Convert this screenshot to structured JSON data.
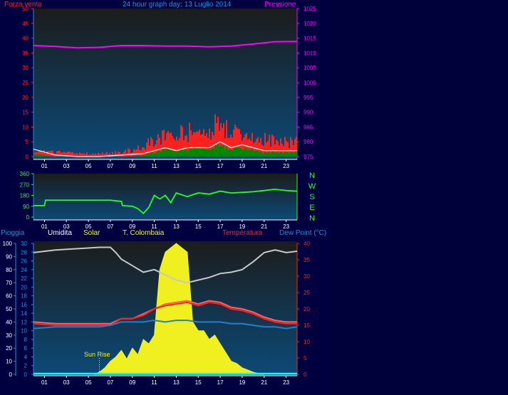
{
  "page": {
    "title": "24 hour graph day:  13 Luglio 2014"
  },
  "colors": {
    "background": "#000040",
    "plot_top": "#1c1c1c",
    "plot_bottom": "#0c4a78",
    "wind": "#ff2020",
    "gust": "#ffffff",
    "avgwind": "#008800",
    "pressure": "#ff00ff",
    "direction": "#22ff22",
    "humidity": "#c8c8c8",
    "solar": "#f0f020",
    "temperature": "#ff2020",
    "t_colombaia": "#ff6060",
    "dewpoint": "#2080d0",
    "rain": "#00ffff",
    "axis_blue": "#1e8fd8"
  },
  "chart_data": [
    {
      "type": "line",
      "title": "24 hour graph day:  13 Luglio 2014",
      "left_axis_label": "Forza vento",
      "right_axis_label": "Pressione",
      "x_ticks": [
        "01",
        "03",
        "05",
        "07",
        "09",
        "11",
        "13",
        "15",
        "17",
        "19",
        "21",
        "23"
      ],
      "y_left_ticks": [
        0,
        5,
        10,
        15,
        20,
        25,
        30,
        35,
        40,
        45,
        50
      ],
      "y_left_range": [
        0,
        50
      ],
      "y_right_ticks": [
        975,
        980,
        985,
        990,
        995,
        1000,
        1005,
        1010,
        1015,
        1020,
        1025
      ],
      "y_right_range": [
        975,
        1025
      ],
      "series": [
        {
          "key": "pressure",
          "axis": "right",
          "x": [
            0,
            2,
            4,
            6,
            8,
            10,
            12,
            14,
            16,
            18,
            20,
            22,
            24
          ],
          "values": [
            1012.5,
            1012.2,
            1011.7,
            1011.9,
            1012.5,
            1012.5,
            1012.3,
            1012.3,
            1012.1,
            1012.3,
            1013.0,
            1013.8,
            1013.9
          ]
        },
        {
          "key": "wind",
          "axis": "left",
          "x": [
            0,
            2,
            4,
            6,
            8,
            10,
            11,
            12,
            13,
            14,
            15,
            16,
            17,
            18,
            19,
            20,
            21,
            22,
            23,
            24
          ],
          "values": [
            2,
            1.5,
            1,
            1,
            1.5,
            3,
            6,
            7,
            7,
            8,
            8,
            10,
            11,
            8,
            8,
            7,
            6,
            5,
            5,
            5
          ]
        },
        {
          "key": "gust",
          "axis": "left",
          "x": [
            0,
            2,
            4,
            6,
            8,
            10,
            11,
            12,
            13,
            14,
            15,
            16,
            17,
            18,
            19,
            20,
            21,
            22,
            23,
            24
          ],
          "values": [
            2.5,
            0.5,
            0,
            0,
            0.5,
            1,
            2,
            3,
            2,
            3,
            3,
            3,
            5,
            3,
            4,
            3,
            2,
            2,
            2,
            2
          ]
        },
        {
          "key": "avgwind",
          "axis": "left",
          "x": [
            0,
            2,
            4,
            6,
            8,
            10,
            11,
            12,
            13,
            14,
            15,
            16,
            17,
            18,
            19,
            20,
            21,
            22,
            23,
            24
          ],
          "values": [
            1,
            0,
            0,
            0,
            0,
            0.5,
            1.5,
            2.5,
            2,
            2.5,
            3,
            3,
            4,
            2.5,
            3,
            2.5,
            1.5,
            1.5,
            1.5,
            1.5
          ]
        }
      ]
    },
    {
      "type": "line",
      "y_ticks": [
        0,
        90,
        180,
        270,
        360
      ],
      "y_range": [
        0,
        360
      ],
      "compass_labels": [
        "N",
        "W",
        "S",
        "E",
        "N"
      ],
      "x_ticks": [
        "01",
        "03",
        "05",
        "07",
        "09",
        "11",
        "13",
        "15",
        "17",
        "19",
        "21",
        "23"
      ],
      "series": [
        {
          "key": "direction",
          "x": [
            0,
            1,
            1.1,
            3,
            5,
            7,
            8,
            8.1,
            9,
            9.5,
            10,
            10.5,
            11,
            11.5,
            12,
            12.5,
            13,
            14,
            15,
            16,
            17,
            18,
            19,
            20,
            21,
            22,
            23,
            24
          ],
          "values": [
            95,
            95,
            140,
            140,
            140,
            140,
            130,
            95,
            90,
            70,
            30,
            80,
            180,
            150,
            180,
            120,
            200,
            170,
            200,
            190,
            215,
            200,
            205,
            210,
            220,
            230,
            220,
            215
          ]
        }
      ]
    },
    {
      "type": "line",
      "legend": [
        "Pioggia",
        "Umidita",
        "Solar",
        "T. Colombaia",
        "Temperatura",
        "Dew Point (°C)"
      ],
      "x_ticks": [
        "01",
        "03",
        "05",
        "07",
        "09",
        "11",
        "13",
        "15",
        "17",
        "19",
        "21",
        "23"
      ],
      "y_left_ticks": [
        0,
        10,
        20,
        30,
        40,
        50,
        60,
        70,
        80,
        90,
        100
      ],
      "y_left_range": [
        0,
        100
      ],
      "y_mid_ticks": [
        0,
        2,
        4,
        6,
        8,
        10,
        12,
        14,
        16,
        18,
        20,
        22,
        24,
        26,
        28,
        30
      ],
      "y_mid_range": [
        0,
        30
      ],
      "y_right_ticks": [
        0,
        5,
        10,
        15,
        20,
        25,
        30,
        35,
        40
      ],
      "y_right_range": [
        0,
        40
      ],
      "annotation": "Sun Rise",
      "annotation_x": 6,
      "series": [
        {
          "key": "humidity",
          "axis": "left",
          "x": [
            0,
            2,
            4,
            6,
            7,
            7.5,
            8,
            9,
            10,
            11,
            12,
            13,
            14,
            15,
            16,
            17,
            18,
            19,
            20,
            21,
            22,
            23,
            24
          ],
          "values": [
            93,
            95,
            96,
            97,
            97,
            93,
            88,
            83,
            78,
            80,
            76,
            72,
            70,
            72,
            74,
            77,
            78,
            80,
            86,
            93,
            95,
            93,
            94
          ]
        },
        {
          "key": "solar",
          "axis": "mid",
          "x": [
            5.5,
            6,
            6.5,
            7,
            7.5,
            8,
            8.5,
            9,
            9.5,
            10,
            10.5,
            11,
            11.5,
            12,
            12.5,
            13,
            13.5,
            14,
            14.5,
            15,
            15.5,
            16,
            16.5,
            17,
            17.5,
            18,
            18.5,
            19,
            19.5,
            20,
            20.5,
            21
          ],
          "values": [
            0,
            0.5,
            1.5,
            3,
            4,
            5.5,
            3.5,
            6,
            4.5,
            8,
            7,
            9,
            24,
            28,
            29,
            30,
            29,
            28,
            12,
            10,
            10,
            8,
            9,
            7,
            5,
            3,
            2.5,
            1.5,
            1,
            0.5,
            0.2,
            0
          ]
        },
        {
          "key": "temperature",
          "axis": "right",
          "x": [
            0,
            2,
            4,
            6,
            7,
            8,
            9,
            10,
            11,
            12,
            13,
            14,
            15,
            16,
            17,
            18,
            19,
            20,
            21,
            22,
            23,
            24
          ],
          "values": [
            15.5,
            15,
            15,
            15,
            15,
            17,
            17,
            18,
            20,
            21,
            21.5,
            22,
            21,
            22,
            21.5,
            20,
            19.5,
            18.5,
            17,
            16,
            15.5,
            15.5
          ]
        },
        {
          "key": "t_colombaia",
          "axis": "right",
          "x": [
            0,
            2,
            4,
            6,
            7,
            8,
            9,
            10,
            11,
            12,
            13,
            14,
            15,
            16,
            17,
            18,
            19,
            20,
            21,
            22,
            23,
            24
          ],
          "values": [
            16,
            15.5,
            15.5,
            15.5,
            15.5,
            17,
            17,
            18.5,
            20,
            21.5,
            22,
            22.5,
            21.5,
            22.5,
            22,
            20.5,
            20,
            19,
            17.5,
            16.5,
            16,
            16
          ]
        },
        {
          "key": "dewpoint",
          "axis": "right",
          "x": [
            0,
            2,
            4,
            6,
            7,
            8,
            9,
            10,
            11,
            12,
            13,
            14,
            15,
            16,
            17,
            18,
            19,
            20,
            21,
            22,
            23,
            24
          ],
          "values": [
            14,
            14.5,
            14.5,
            14.5,
            15,
            16,
            16,
            16,
            16.5,
            16,
            16.5,
            16.5,
            16,
            16,
            16,
            15.5,
            15.5,
            15,
            14.5,
            14.5,
            14,
            14.5
          ]
        },
        {
          "key": "rain",
          "axis": "left",
          "x": [
            0,
            24
          ],
          "values": [
            0,
            0
          ]
        }
      ]
    }
  ]
}
